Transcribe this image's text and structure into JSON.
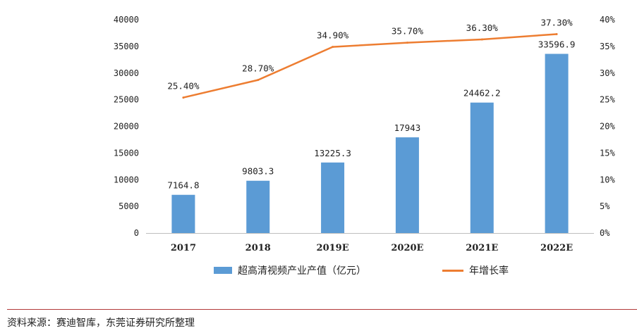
{
  "chart_data": {
    "type": "bar",
    "categories": [
      "2017",
      "2018",
      "2019E",
      "2020E",
      "2021E",
      "2022E"
    ],
    "series": [
      {
        "name": "超高清视频产业产值（亿元）",
        "type": "bar",
        "axis": "left",
        "values": [
          7164.8,
          9803.3,
          13225.3,
          17943,
          24462.2,
          33596.9
        ],
        "labels": [
          "7164.8",
          "9803.3",
          "13225.3",
          "17943",
          "24462.2",
          "33596.9"
        ]
      },
      {
        "name": "年增长率",
        "type": "line",
        "axis": "right",
        "values": [
          25.4,
          28.7,
          34.9,
          35.7,
          36.3,
          37.3
        ],
        "labels": [
          "25.40%",
          "28.70%",
          "34.90%",
          "35.70%",
          "36.30%",
          "37.30%"
        ]
      }
    ],
    "y_left": {
      "lim": [
        0,
        40000
      ],
      "ticks": [
        0,
        5000,
        10000,
        15000,
        20000,
        25000,
        30000,
        35000,
        40000
      ],
      "tick_labels": [
        "0",
        "5000",
        "10000",
        "15000",
        "20000",
        "25000",
        "30000",
        "35000",
        "40000"
      ]
    },
    "y_right": {
      "lim": [
        0,
        40
      ],
      "ticks": [
        0,
        5,
        10,
        15,
        20,
        25,
        30,
        35,
        40
      ],
      "tick_labels": [
        "0%",
        "5%",
        "10%",
        "15%",
        "20%",
        "25%",
        "30%",
        "35%",
        "40%"
      ]
    },
    "grid": false,
    "legend_position": "bottom",
    "title": "",
    "xlabel": "",
    "ylabel": ""
  },
  "colors": {
    "bar": "#5b9bd5",
    "line": "#ed7d31",
    "axis": "#bfbfbf",
    "divider": "#b23a3a"
  },
  "legend": {
    "bar_label": "超高清视频产业产值（亿元）",
    "line_label": "年增长率"
  },
  "source_text": "资料来源：赛迪智库，东莞证券研究所整理"
}
